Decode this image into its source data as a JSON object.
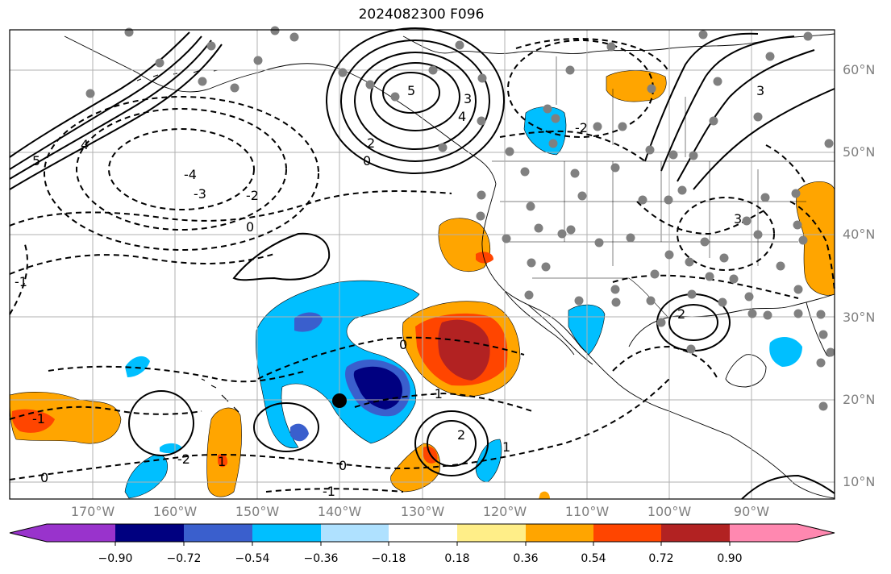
{
  "title": "2024082300 F096",
  "lat_labels": [
    "60°N",
    "50°N",
    "40°N",
    "30°N",
    "20°N",
    "10°N"
  ],
  "lon_labels": [
    "170°W",
    "160°W",
    "150°W",
    "140°W",
    "130°W",
    "120°W",
    "110°W",
    "100°W",
    "90°W"
  ],
  "contour_labels": [
    "5",
    "3",
    "2",
    "0",
    "-2",
    "-3",
    "-4",
    "-1",
    "0",
    "-1",
    "-2",
    "0",
    "1",
    "2",
    "3",
    "4",
    "5",
    "-1",
    "-2",
    "0",
    "-1",
    "0",
    "1",
    "2",
    "3",
    "4"
  ],
  "colorbar": {
    "ticks": [
      "−0.90",
      "−0.72",
      "−0.54",
      "−0.36",
      "−0.18",
      "0.18",
      "0.36",
      "0.54",
      "0.72",
      "0.90"
    ],
    "colors": [
      "#9933cc",
      "#000080",
      "#3a5fcd",
      "#00bfff",
      "#afe1ff",
      "#ffffff",
      "#ffee88",
      "#ffa500",
      "#ff4500",
      "#b22222",
      "#ff88b0"
    ]
  }
}
